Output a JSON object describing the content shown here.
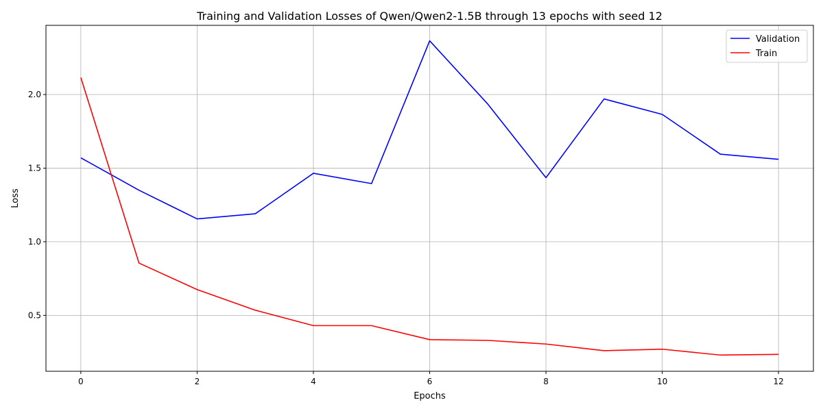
{
  "chart_data": {
    "type": "line",
    "title": "Training and Validation Losses of Qwen/Qwen2-1.5B through 13 epochs with seed 12",
    "xlabel": "Epochs",
    "ylabel": "Loss",
    "x": [
      0,
      1,
      2,
      3,
      4,
      5,
      6,
      7,
      8,
      9,
      10,
      11,
      12
    ],
    "xlim": [
      -0.6,
      12.6
    ],
    "ylim": [
      0.12,
      2.47
    ],
    "x_ticks": [
      0,
      2,
      4,
      6,
      8,
      10,
      12
    ],
    "x_tick_labels": [
      "0",
      "2",
      "4",
      "6",
      "8",
      "10",
      "12"
    ],
    "y_ticks": [
      0.5,
      1.0,
      1.5,
      2.0
    ],
    "y_tick_labels": [
      "0.5",
      "1.0",
      "1.5",
      "2.0"
    ],
    "grid": true,
    "legend_position": "top-right",
    "series": [
      {
        "name": "Validation",
        "color": "#0000ff",
        "values": [
          1.57,
          1.35,
          1.155,
          1.19,
          1.465,
          1.395,
          2.365,
          1.935,
          1.435,
          1.97,
          1.865,
          1.595,
          1.56
        ]
      },
      {
        "name": "Train",
        "color": "#ff0000",
        "values": [
          2.115,
          0.855,
          0.675,
          0.535,
          0.43,
          0.43,
          0.335,
          0.33,
          0.305,
          0.26,
          0.27,
          0.23,
          0.235
        ]
      }
    ]
  }
}
